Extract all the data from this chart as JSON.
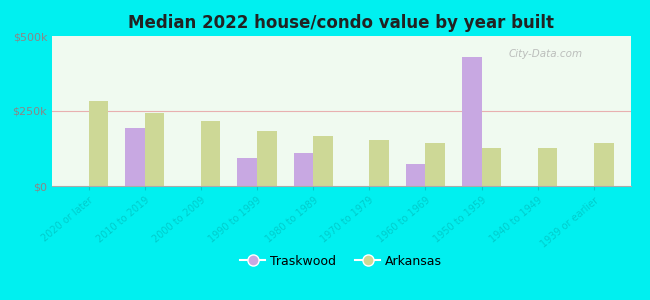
{
  "title": "Median 2022 house/condo value by year built",
  "categories": [
    "2020 or later",
    "2010 to 2019",
    "2000 to 2009",
    "1990 to 1999",
    "1980 to 1989",
    "1970 to 1979",
    "1960 to 1969",
    "1950 to 1959",
    "1940 to 1949",
    "1939 or earlier"
  ],
  "traskwood": [
    0,
    195000,
    0,
    95000,
    110000,
    0,
    75000,
    430000,
    0,
    0
  ],
  "arkansas": [
    285000,
    242000,
    218000,
    182000,
    168000,
    152000,
    143000,
    128000,
    128000,
    143000
  ],
  "ylim": [
    0,
    500000
  ],
  "yticks": [
    0,
    250000,
    500000
  ],
  "ytick_labels": [
    "$0",
    "$250k",
    "$500k"
  ],
  "traskwood_color": "#c8a8e2",
  "arkansas_color": "#cdd896",
  "background_color": "#00f0f0",
  "plot_bg_top": "#f0faf0",
  "plot_bg_bottom": "#e0f0e0",
  "bar_width": 0.35,
  "watermark": "City-Data.com",
  "legend_traskwood": "Traskwood",
  "legend_arkansas": "Arkansas",
  "tick_color": "#00cccc",
  "title_color": "#222222",
  "ytick_color": "#888888"
}
